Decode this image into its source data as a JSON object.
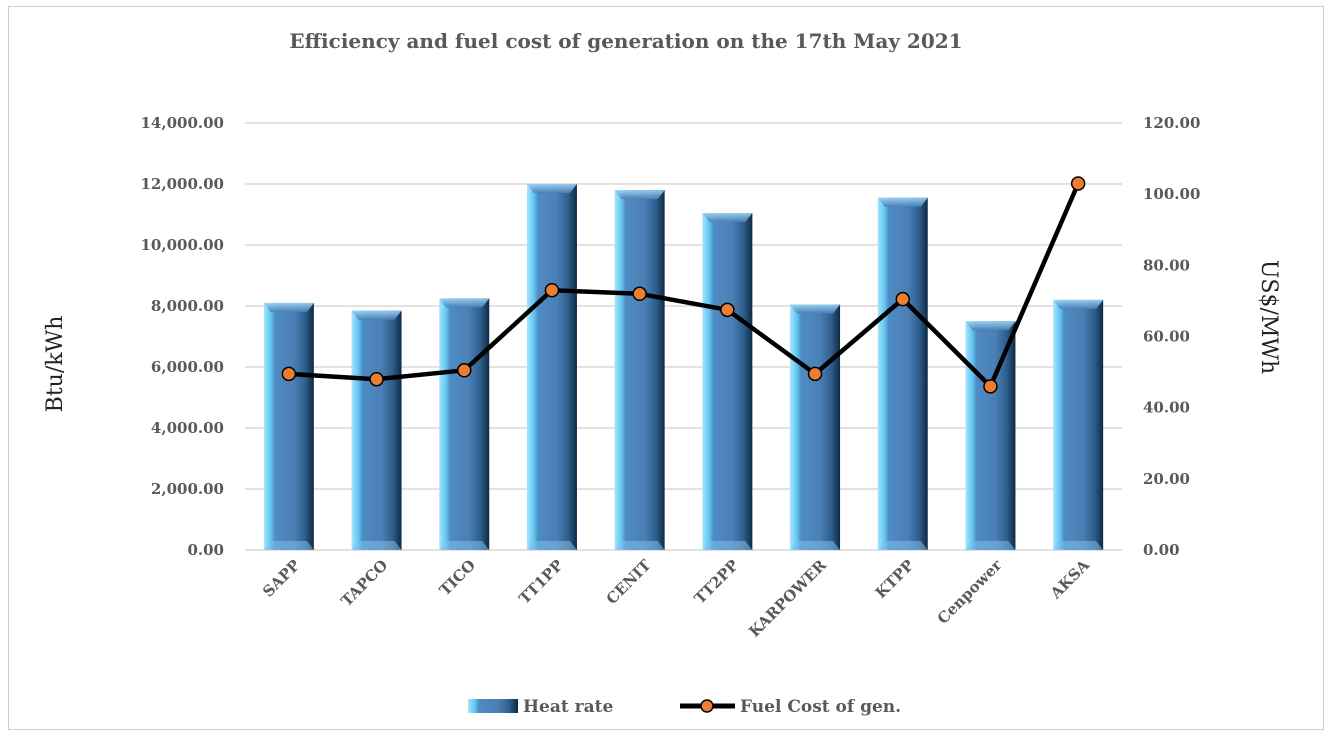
{
  "chart_data": {
    "type": "bar",
    "title": "Efficiency and fuel cost of generation on the 17th May 2021",
    "categories": [
      "SAPP",
      "TAPCO",
      "TICO",
      "TT1PP",
      "CENIT",
      "TT2PP",
      "KARPOWER",
      "KTPP",
      "Cenpower",
      "AKSA"
    ],
    "y_left": {
      "label": "Btu/kWh",
      "range": [
        0,
        14000
      ],
      "ticks": [
        "0.00",
        "2,000.00",
        "4,000.00",
        "6,000.00",
        "8,000.00",
        "10,000.00",
        "12,000.00",
        "14,000.00"
      ]
    },
    "y_right": {
      "label": "US$/MWh",
      "range": [
        0,
        120
      ],
      "ticks": [
        "0.00",
        "20.00",
        "40.00",
        "60.00",
        "80.00",
        "100.00",
        "120.00"
      ]
    },
    "series": [
      {
        "name": "Heat rate",
        "type": "bar",
        "axis": "left",
        "color": "#4a7fb5",
        "values": [
          8100,
          7850,
          8250,
          12000,
          11800,
          11050,
          8050,
          11550,
          7500,
          8200
        ]
      },
      {
        "name": "Fuel Cost of gen.",
        "type": "line",
        "axis": "right",
        "color": "#000000",
        "marker_color": "#ed7d31",
        "values": [
          49.5,
          48.0,
          50.5,
          73.0,
          72.0,
          67.5,
          49.5,
          70.5,
          46.0,
          103.0
        ]
      }
    ],
    "grid": true,
    "legend_position": "bottom"
  }
}
